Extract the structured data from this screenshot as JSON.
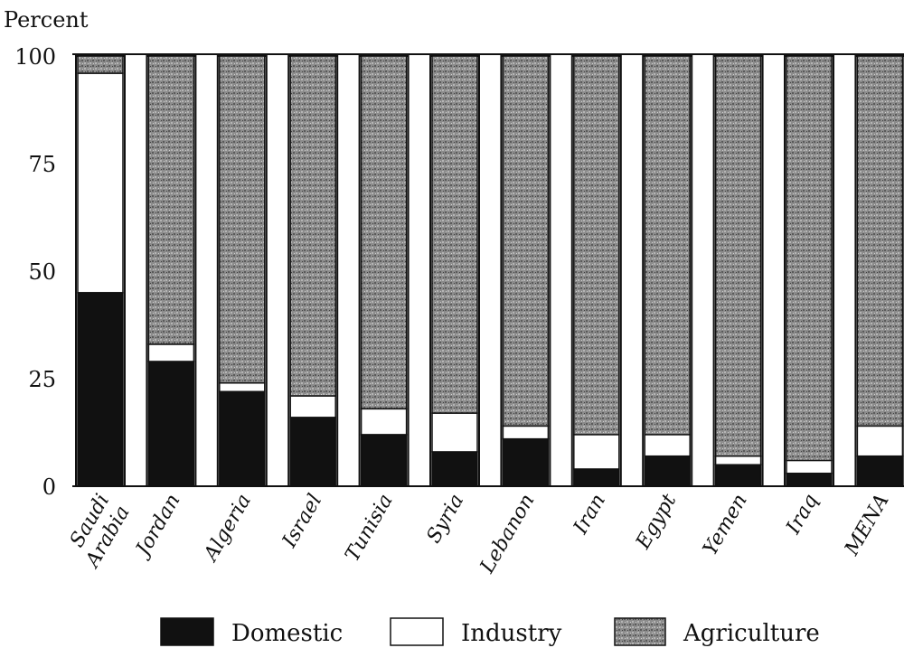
{
  "chart_data": {
    "type": "bar",
    "stacked": true,
    "ylabel": "Percent",
    "ylim": [
      0,
      100
    ],
    "yticks": [
      0,
      25,
      50,
      75,
      100
    ],
    "categories": [
      "Saudi Arabia",
      "Jordan",
      "Algeria",
      "Israel",
      "Tunisia",
      "Syria",
      "Lebanon",
      "Iran",
      "Egypt",
      "Yemen",
      "Iraq",
      "MENA"
    ],
    "series": [
      {
        "name": "Domestic",
        "color": "#111111",
        "values": [
          45,
          29,
          22,
          16,
          12,
          8,
          11,
          4,
          7,
          5,
          3,
          7
        ]
      },
      {
        "name": "Industry",
        "color": "#ffffff",
        "values": [
          51,
          4,
          2,
          5,
          6,
          9,
          3,
          8,
          5,
          2,
          3,
          7
        ]
      },
      {
        "name": "Agriculture",
        "color": "#8a8a8a",
        "values": [
          4,
          67,
          76,
          79,
          82,
          83,
          86,
          88,
          88,
          93,
          94,
          86
        ]
      }
    ],
    "legend_position": "bottom",
    "grid": false
  }
}
